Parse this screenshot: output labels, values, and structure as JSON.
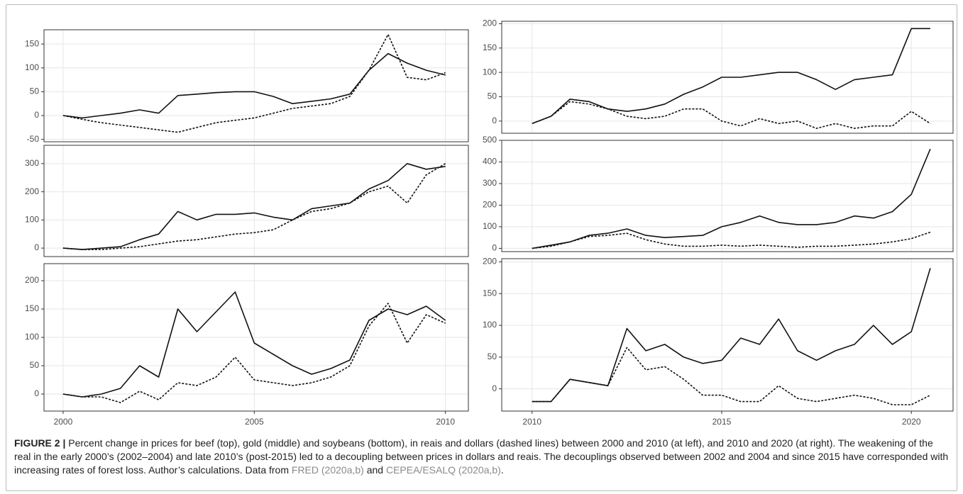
{
  "chart_data": [
    {
      "type": "line",
      "x": [
        2000,
        2000.5,
        2001,
        2001.5,
        2002,
        2002.5,
        2003,
        2003.5,
        2004,
        2004.5,
        2005,
        2005.5,
        2006,
        2006.5,
        2007,
        2007.5,
        2008,
        2008.5,
        2009,
        2009.5,
        2010
      ],
      "xlim": [
        1999.5,
        2010.6
      ],
      "xticks": [
        2000,
        2005,
        2010
      ],
      "x_tick_labels": false,
      "ylim": [
        -55,
        180
      ],
      "yticks": [
        -50,
        0,
        50,
        100,
        150
      ],
      "grid": true,
      "series": [
        {
          "color": "#111111",
          "dash": false,
          "values": [
            0,
            -5,
            0,
            5,
            12,
            5,
            42,
            45,
            48,
            50,
            50,
            40,
            25,
            30,
            35,
            45,
            95,
            130,
            110,
            95,
            85
          ]
        },
        {
          "color": "#111111",
          "dash": true,
          "values": [
            0,
            -8,
            -15,
            -20,
            -25,
            -30,
            -35,
            -25,
            -15,
            -10,
            -5,
            5,
            15,
            20,
            25,
            40,
            95,
            170,
            80,
            75,
            90
          ]
        }
      ]
    },
    {
      "type": "line",
      "x": [
        2000,
        2000.5,
        2001,
        2001.5,
        2002,
        2002.5,
        2003,
        2003.5,
        2004,
        2004.5,
        2005,
        2005.5,
        2006,
        2006.5,
        2007,
        2007.5,
        2008,
        2008.5,
        2009,
        2009.5,
        2010
      ],
      "xlim": [
        1999.5,
        2010.6
      ],
      "xticks": [
        2000,
        2005,
        2010
      ],
      "x_tick_labels": false,
      "ylim": [
        -30,
        365
      ],
      "yticks": [
        0,
        100,
        200,
        300
      ],
      "grid": true,
      "series": [
        {
          "color": "#111111",
          "dash": false,
          "values": [
            0,
            -5,
            0,
            5,
            30,
            50,
            130,
            100,
            120,
            120,
            125,
            110,
            100,
            140,
            150,
            160,
            210,
            240,
            300,
            280,
            290
          ]
        },
        {
          "color": "#111111",
          "dash": true,
          "values": [
            0,
            -5,
            -5,
            0,
            5,
            15,
            25,
            30,
            40,
            50,
            55,
            65,
            100,
            130,
            140,
            160,
            200,
            220,
            160,
            260,
            300
          ]
        }
      ]
    },
    {
      "type": "line",
      "x": [
        2000,
        2000.5,
        2001,
        2001.5,
        2002,
        2002.5,
        2003,
        2003.5,
        2004,
        2004.5,
        2005,
        2005.5,
        2006,
        2006.5,
        2007,
        2007.5,
        2008,
        2008.5,
        2009,
        2009.5,
        2010
      ],
      "xlim": [
        1999.5,
        2010.6
      ],
      "xticks": [
        2000,
        2005,
        2010
      ],
      "x_tick_labels": true,
      "ylim": [
        -30,
        230
      ],
      "yticks": [
        0,
        50,
        100,
        150,
        200
      ],
      "grid": true,
      "series": [
        {
          "color": "#111111",
          "dash": false,
          "values": [
            0,
            -5,
            0,
            10,
            50,
            30,
            150,
            110,
            145,
            180,
            90,
            70,
            50,
            35,
            45,
            60,
            130,
            150,
            140,
            155,
            130
          ]
        },
        {
          "color": "#111111",
          "dash": true,
          "values": [
            0,
            -5,
            -5,
            -15,
            5,
            -10,
            20,
            15,
            30,
            65,
            25,
            20,
            15,
            20,
            30,
            50,
            120,
            160,
            90,
            140,
            125
          ]
        }
      ]
    },
    {
      "type": "line",
      "x": [
        2010,
        2010.5,
        2011,
        2011.5,
        2012,
        2012.5,
        2013,
        2013.5,
        2014,
        2014.5,
        2015,
        2015.5,
        2016,
        2016.5,
        2017,
        2017.5,
        2018,
        2018.5,
        2019,
        2019.5,
        2020,
        2020.5
      ],
      "xlim": [
        2009.2,
        2021.1
      ],
      "xticks": [
        2010,
        2015,
        2020
      ],
      "x_tick_labels": false,
      "ylim": [
        -25,
        205
      ],
      "yticks": [
        0,
        50,
        100,
        150,
        200
      ],
      "grid": true,
      "series": [
        {
          "color": "#111111",
          "dash": false,
          "values": [
            -5,
            10,
            45,
            40,
            25,
            20,
            25,
            35,
            55,
            70,
            90,
            90,
            95,
            100,
            100,
            85,
            65,
            85,
            90,
            95,
            190,
            190
          ]
        },
        {
          "color": "#111111",
          "dash": true,
          "values": [
            -5,
            10,
            40,
            35,
            25,
            10,
            5,
            10,
            25,
            25,
            0,
            -10,
            5,
            -5,
            0,
            -15,
            -5,
            -15,
            -10,
            -10,
            20,
            -5
          ]
        }
      ]
    },
    {
      "type": "line",
      "x": [
        2010,
        2010.5,
        2011,
        2011.5,
        2012,
        2012.5,
        2013,
        2013.5,
        2014,
        2014.5,
        2015,
        2015.5,
        2016,
        2016.5,
        2017,
        2017.5,
        2018,
        2018.5,
        2019,
        2019.5,
        2020,
        2020.5
      ],
      "xlim": [
        2009.2,
        2021.1
      ],
      "xticks": [
        2010,
        2015,
        2020
      ],
      "x_tick_labels": false,
      "ylim": [
        -15,
        500
      ],
      "yticks": [
        0,
        100,
        200,
        300,
        400,
        500
      ],
      "grid": true,
      "series": [
        {
          "color": "#111111",
          "dash": false,
          "values": [
            0,
            15,
            30,
            60,
            70,
            90,
            60,
            50,
            55,
            60,
            100,
            120,
            150,
            120,
            110,
            110,
            120,
            150,
            140,
            170,
            250,
            460
          ]
        },
        {
          "color": "#111111",
          "dash": true,
          "values": [
            0,
            10,
            30,
            55,
            60,
            70,
            40,
            20,
            10,
            10,
            15,
            10,
            15,
            10,
            5,
            10,
            10,
            15,
            20,
            30,
            45,
            75
          ]
        }
      ]
    },
    {
      "type": "line",
      "x": [
        2010,
        2010.5,
        2011,
        2011.5,
        2012,
        2012.5,
        2013,
        2013.5,
        2014,
        2014.5,
        2015,
        2015.5,
        2016,
        2016.5,
        2017,
        2017.5,
        2018,
        2018.5,
        2019,
        2019.5,
        2020,
        2020.5
      ],
      "xlim": [
        2009.2,
        2021.1
      ],
      "xticks": [
        2010,
        2015,
        2020
      ],
      "x_tick_labels": true,
      "ylim": [
        -35,
        205
      ],
      "yticks": [
        0,
        50,
        100,
        150,
        200
      ],
      "grid": true,
      "series": [
        {
          "color": "#111111",
          "dash": false,
          "values": [
            -20,
            -20,
            15,
            10,
            5,
            95,
            60,
            70,
            50,
            40,
            45,
            80,
            70,
            110,
            60,
            45,
            60,
            70,
            100,
            70,
            90,
            190
          ]
        },
        {
          "color": "#111111",
          "dash": true,
          "values": [
            -20,
            -20,
            15,
            10,
            5,
            65,
            30,
            35,
            15,
            -10,
            -10,
            -20,
            -20,
            5,
            -15,
            -20,
            -15,
            -10,
            -15,
            -25,
            -25,
            -10
          ]
        }
      ]
    }
  ],
  "caption": {
    "label": "FIGURE 2 |",
    "text": "Percent change in prices for beef (top), gold (middle) and soybeans (bottom), in reais and dollars (dashed lines) between 2000 and 2010 (at left), and 2010 and 2020 (at right). The weakening of the real in the early 2000’s (2002–2004) and late 2010’s (post-2015) led to a decoupling between prices in dollars and reais. The decouplings observed between 2002 and 2004 and since 2015 have corresponded with increasing rates of forest loss. Author’s calculations. Data from",
    "link1": "FRED (2020a,b)",
    "and": "and",
    "link2": "CEPEA/ESALQ (2020a,b)",
    "end": "."
  }
}
